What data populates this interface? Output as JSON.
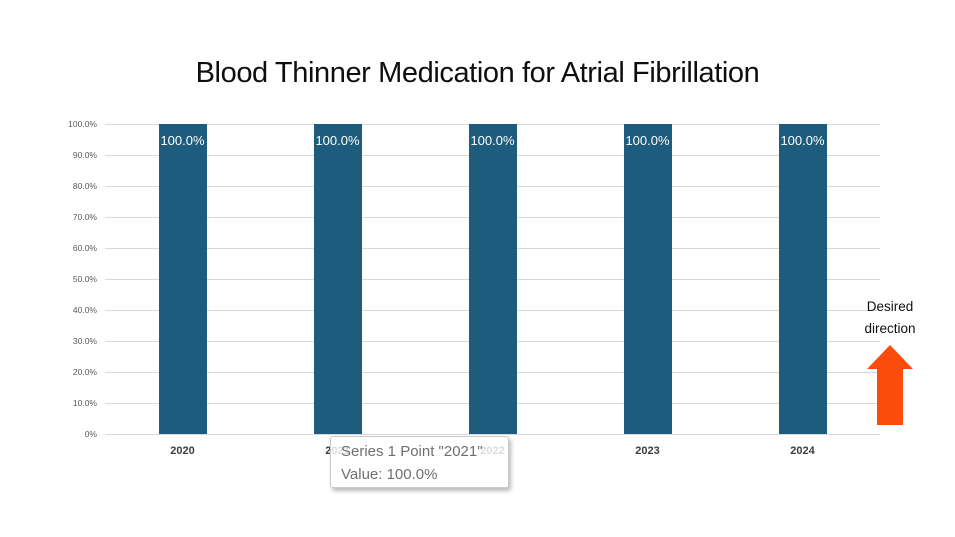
{
  "title": "Blood Thinner Medication for Atrial Fibrillation",
  "chart_data": {
    "type": "bar",
    "title": "Blood Thinner Medication for Atrial Fibrillation",
    "categories": [
      "2020",
      "2021",
      "2022",
      "2023",
      "2024"
    ],
    "series": [
      {
        "name": "Series 1",
        "values": [
          100.0,
          100.0,
          100.0,
          100.0,
          100.0
        ]
      }
    ],
    "bar_labels": [
      "100.0%",
      "100.0%",
      "100.0%",
      "100.0%",
      "100.0%"
    ],
    "ylabel": "",
    "xlabel": "",
    "ylim": [
      0,
      100
    ],
    "ytick_labels": [
      "100.0%",
      "90.0%",
      "80.0%",
      "70.0%",
      "60.0%",
      "50.0%",
      "40.0%",
      "30.0%",
      "20.0%",
      "10.0%",
      "0%"
    ],
    "grid": true,
    "legend": "none"
  },
  "tooltip": {
    "line1": "Series 1 Point \"2021\"",
    "line2": "Value: 100.0%"
  },
  "annotation": {
    "text_line1": "Desired",
    "text_line2": "direction"
  },
  "colors": {
    "bar": "#1e5c7d",
    "bar_label": "#ffffff",
    "gridline": "#d9d9d9",
    "y_label": "#595959",
    "x_label": "#3d3d3d",
    "title": "#0e0e0e",
    "tooltip_text": "#6f6f6f",
    "tooltip_border": "#c9c9c9",
    "arrow": "#fb4c0d",
    "background": "#ffffff"
  }
}
